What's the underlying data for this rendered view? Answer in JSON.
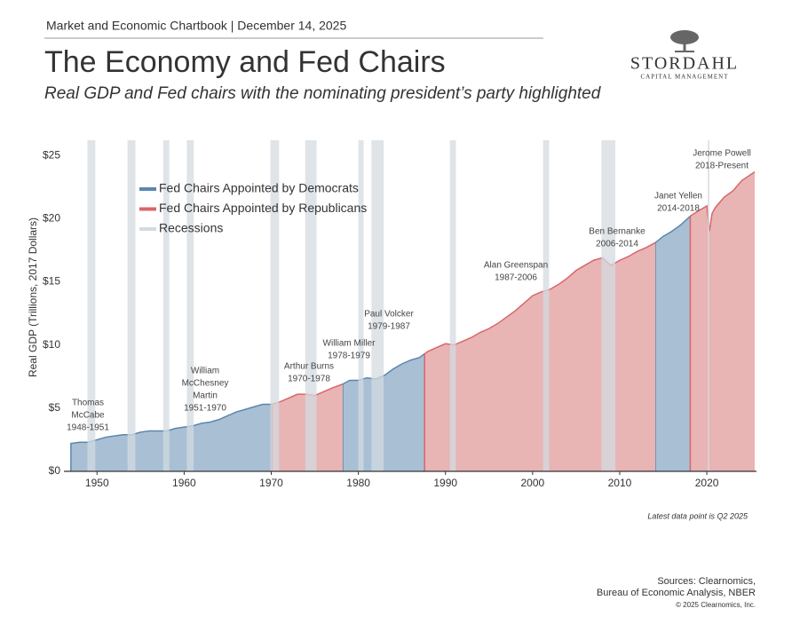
{
  "header": {
    "kicker": "Market and Economic Chartbook | December 14, 2025",
    "title": "The Economy and Fed Chairs",
    "subtitle": "Real GDP and Fed chairs with the nominating president’s party highlighted",
    "logo_name": "STORDAHL",
    "logo_tagline": "CAPITAL MANAGEMENT"
  },
  "chart_data": {
    "type": "area",
    "y_label": "Real GDP (Trillions, 2017 Dollars)",
    "x": [
      1947,
      1948,
      1949,
      1950,
      1951,
      1952,
      1953,
      1954,
      1955,
      1956,
      1957,
      1958,
      1959,
      1960,
      1961,
      1962,
      1963,
      1964,
      1965,
      1966,
      1967,
      1968,
      1969,
      1970.1,
      1971,
      1972,
      1973,
      1974,
      1975,
      1976,
      1977,
      1978.2,
      1979,
      1980,
      1981,
      1982,
      1983,
      1984,
      1985,
      1986,
      1987,
      1987.6,
      1988,
      1989,
      1990,
      1991,
      1992,
      1993,
      1994,
      1995,
      1996,
      1997,
      1998,
      1999,
      2000,
      2001,
      2002,
      2003,
      2004,
      2005,
      2006,
      2007,
      2008,
      2009,
      2010,
      2011,
      2012,
      2013,
      2014.1,
      2015,
      2016,
      2017,
      2018.1,
      2019,
      2020,
      2020.3,
      2020.6,
      2021,
      2022,
      2023,
      2024,
      2025.5
    ],
    "series": [
      {
        "name": "Fed Chairs Appointed by Democrats",
        "color": "#5b86b0",
        "fill": "#a9bfd4",
        "values": [
          2.2,
          2.3,
          2.3,
          2.5,
          2.7,
          2.8,
          2.9,
          2.9,
          3.1,
          3.2,
          3.2,
          3.2,
          3.4,
          3.5,
          3.6,
          3.8,
          3.9,
          4.1,
          4.4,
          4.7,
          4.9,
          5.1,
          5.3,
          5.3,
          null,
          null,
          null,
          null,
          null,
          null,
          null,
          6.9,
          7.2,
          7.2,
          7.4,
          7.3,
          7.6,
          8.1,
          8.5,
          8.8,
          9.0,
          9.3,
          null,
          null,
          null,
          null,
          null,
          null,
          null,
          null,
          null,
          null,
          null,
          null,
          null,
          null,
          null,
          null,
          null,
          null,
          null,
          null,
          null,
          null,
          null,
          null,
          null,
          null,
          18.1,
          18.6,
          19.0,
          19.5,
          20.2,
          null,
          null,
          null,
          null,
          null,
          null,
          null,
          null,
          null
        ]
      },
      {
        "name": "Fed Chairs Appointed by Republicans",
        "color": "#d9666b",
        "fill": "#e8b4b4",
        "values": [
          null,
          null,
          null,
          null,
          null,
          null,
          null,
          null,
          null,
          null,
          null,
          null,
          null,
          null,
          null,
          null,
          null,
          null,
          null,
          null,
          null,
          null,
          null,
          5.3,
          5.5,
          5.8,
          6.1,
          6.1,
          6.0,
          6.3,
          6.6,
          6.9,
          null,
          null,
          null,
          null,
          null,
          null,
          null,
          null,
          null,
          9.3,
          9.5,
          9.8,
          10.1,
          10.0,
          10.3,
          10.6,
          11.0,
          11.3,
          11.7,
          12.2,
          12.7,
          13.3,
          13.9,
          14.2,
          14.4,
          14.8,
          15.3,
          15.9,
          16.3,
          16.7,
          16.9,
          16.3,
          16.7,
          17.0,
          17.4,
          17.7,
          18.1,
          null,
          null,
          null,
          20.2,
          20.6,
          21.0,
          19.0,
          20.4,
          20.9,
          21.7,
          22.2,
          23.0,
          23.7
        ]
      }
    ],
    "recessions": {
      "name": "Recessions",
      "color": "#d3dbe0",
      "ranges": [
        [
          1948.9,
          1949.8
        ],
        [
          1953.5,
          1954.4
        ],
        [
          1957.6,
          1958.3
        ],
        [
          1960.3,
          1961.1
        ],
        [
          1969.9,
          1970.9
        ],
        [
          1973.9,
          1975.2
        ],
        [
          1980.0,
          1980.6
        ],
        [
          1981.5,
          1982.9
        ],
        [
          1990.5,
          1991.2
        ],
        [
          2001.2,
          2001.9
        ],
        [
          2007.9,
          2009.5
        ],
        [
          2020.1,
          2020.3
        ]
      ]
    },
    "xlim": [
      1946.2,
      2025.7
    ],
    "xticks": [
      1950,
      1960,
      1970,
      1980,
      1990,
      2000,
      2010,
      2020
    ],
    "ylim": [
      0,
      26.2
    ],
    "yticks": [
      {
        "value": 0,
        "label": "$0"
      },
      {
        "value": 5,
        "label": "$5"
      },
      {
        "value": 10,
        "label": "$10"
      },
      {
        "value": 15,
        "label": "$15"
      },
      {
        "value": 20,
        "label": "$20"
      },
      {
        "value": 25,
        "label": "$25"
      }
    ],
    "annotations": [
      {
        "lines": [
          "Thomas",
          "McCabe",
          "1948-1951"
        ]
      },
      {
        "lines": [
          "William",
          "McChesney",
          "Martin",
          "1951-1970"
        ]
      },
      {
        "lines": [
          "Arthur Burns",
          "1970-1978"
        ]
      },
      {
        "lines": [
          "William Miller",
          "1978-1979"
        ]
      },
      {
        "lines": [
          "Paul Volcker",
          "1979-1987"
        ]
      },
      {
        "lines": [
          "Alan Greenspan",
          "1987-2006"
        ]
      },
      {
        "lines": [
          "Ben Bernanke",
          "2006-2014"
        ]
      },
      {
        "lines": [
          "Janet Yellen",
          "2014-2018"
        ]
      },
      {
        "lines": [
          "Jerome Powell",
          "2018-Present"
        ]
      }
    ],
    "note": "Latest data point is Q2 2025"
  },
  "footer": {
    "sources": [
      "Sources: Clearnomics,",
      "Bureau of Economic Analysis, NBER"
    ],
    "copyright": "© 2025 Clearnomics, Inc."
  }
}
